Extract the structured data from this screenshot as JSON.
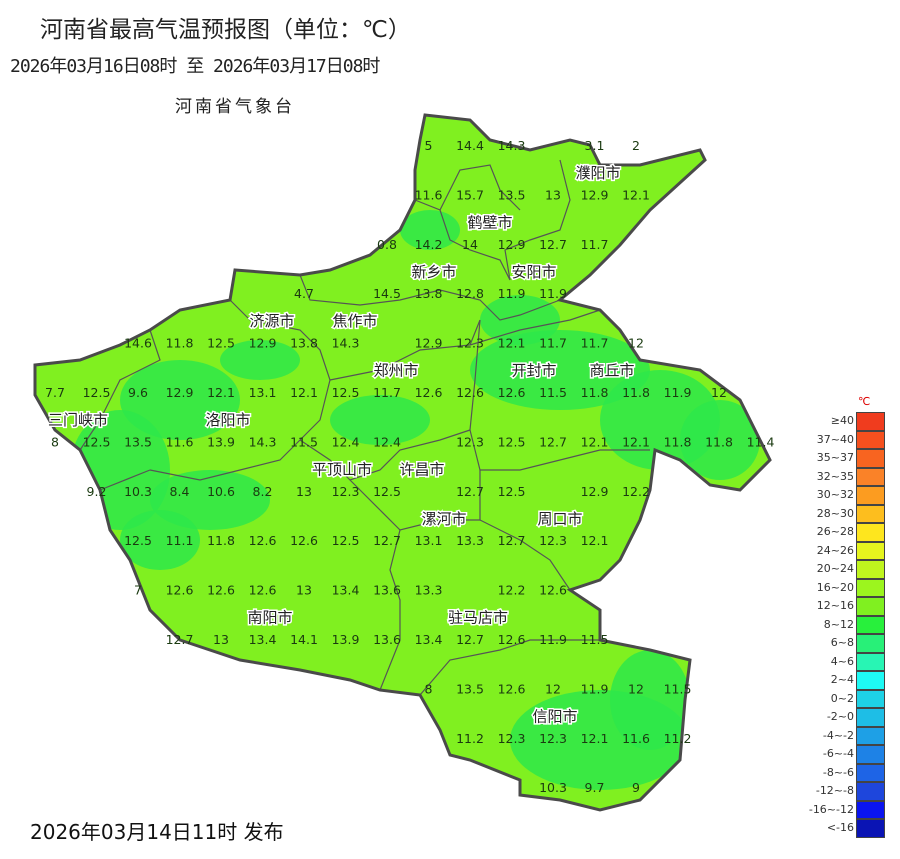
{
  "header": {
    "title": "河南省最高气温预报图（单位：℃）",
    "period": "2026年03月16日08时  至  2026年03月17日08时",
    "agency": "河南省气象台"
  },
  "footer": {
    "issued": "2026年03月14日11时 发布"
  },
  "colors": {
    "base": "#80f020",
    "cool_patch": "#2ee84a",
    "border": "#555555",
    "outer_border": "#4a4a4a"
  },
  "cities": [
    "濮阳市",
    "鹤壁市",
    "安阳市",
    "新乡市",
    "济源市",
    "焦作市",
    "郑州市",
    "开封市",
    "商丘市",
    "三门峡市",
    "洛阳市",
    "许昌市",
    "平顶山市",
    "漯河市",
    "周口市",
    "南阳市",
    "驻马店市",
    "信阳市"
  ],
  "station_grid": [
    {
      "row": 0,
      "values": [
        null,
        null,
        null,
        null,
        null,
        null,
        null,
        null,
        null,
        "5",
        "14.4",
        "14.3",
        null,
        "3.1",
        "2"
      ]
    },
    {
      "row": 1,
      "values": [
        null,
        null,
        null,
        null,
        null,
        null,
        null,
        null,
        null,
        "11.6",
        "15.7",
        "13.5",
        "13",
        "12.9",
        "12.1"
      ]
    },
    {
      "row": 2,
      "values": [
        null,
        null,
        null,
        null,
        null,
        null,
        null,
        null,
        "0.8",
        "14.2",
        "14",
        "12.9",
        "12.7",
        "11.7"
      ]
    },
    {
      "row": 3,
      "values": [
        null,
        null,
        null,
        null,
        null,
        null,
        "4.7",
        null,
        "14.5",
        "13.8",
        "12.8",
        "11.9",
        "11.9"
      ]
    },
    {
      "row": 4,
      "values": [
        null,
        null,
        "14.6",
        "11.8",
        "12.5",
        "12.9",
        "13.8",
        "14.3",
        null,
        "12.9",
        "12.3",
        "12.1",
        "11.7",
        "11.7",
        "12"
      ]
    },
    {
      "row": 5,
      "values": [
        "7.7",
        "12.5",
        "9.6",
        "12.9",
        "12.1",
        "13.1",
        "12.1",
        "12.5",
        "11.7",
        "12.6",
        "12.6",
        "12.6",
        "11.5",
        "11.8",
        "11.8",
        "11.9",
        "12"
      ]
    },
    {
      "row": 6,
      "values": [
        "8",
        "12.5",
        "13.5",
        "11.6",
        "13.9",
        "14.3",
        "11.5",
        "12.4",
        "12.4",
        null,
        "12.3",
        "12.5",
        "12.7",
        "12.1",
        "12.1",
        "11.8",
        "11.8",
        "11.4"
      ]
    },
    {
      "row": 7,
      "values": [
        null,
        "9.2",
        "10.3",
        "8.4",
        "10.6",
        "8.2",
        "13",
        "12.3",
        "12.5",
        null,
        "12.7",
        "12.5",
        null,
        "12.9",
        "12.2"
      ]
    },
    {
      "row": 8,
      "values": [
        null,
        null,
        "12.5",
        "11.1",
        "11.8",
        "12.6",
        "12.6",
        "12.5",
        "12.7",
        "13.1",
        "13.3",
        "12.7",
        "12.3",
        "12.1"
      ]
    },
    {
      "row": 9,
      "values": [
        null,
        null,
        "7",
        "12.6",
        "12.6",
        "12.6",
        "13",
        "13.4",
        "13.6",
        "13.3",
        null,
        "12.2",
        "12.6"
      ]
    },
    {
      "row": 10,
      "values": [
        null,
        null,
        null,
        "12.7",
        "13",
        "13.4",
        "14.1",
        "13.9",
        "13.6",
        "13.4",
        "12.7",
        "12.6",
        "11.9",
        "11.5"
      ]
    },
    {
      "row": 11,
      "values": [
        null,
        null,
        null,
        null,
        null,
        null,
        null,
        null,
        null,
        "8",
        "13.5",
        "12.6",
        "12",
        "11.9",
        "12",
        "11.5"
      ]
    },
    {
      "row": 12,
      "values": [
        null,
        null,
        null,
        null,
        null,
        null,
        null,
        null,
        null,
        null,
        "11.2",
        "12.3",
        "12.3",
        "12.1",
        "11.6",
        "11.2"
      ]
    },
    {
      "row": 13,
      "values": [
        null,
        null,
        null,
        null,
        null,
        null,
        null,
        null,
        null,
        null,
        null,
        null,
        "10.3",
        "9.7",
        "9"
      ]
    }
  ],
  "legend": {
    "unit": "℃",
    "items": [
      {
        "label": "≥40",
        "color": "#f03c1e"
      },
      {
        "label": "37~40",
        "color": "#f5501e"
      },
      {
        "label": "35~37",
        "color": "#f86420"
      },
      {
        "label": "32~35",
        "color": "#fa8228"
      },
      {
        "label": "30~32",
        "color": "#fc9c20"
      },
      {
        "label": "28~30",
        "color": "#fdbe1e"
      },
      {
        "label": "26~28",
        "color": "#fee61e"
      },
      {
        "label": "24~26",
        "color": "#e6f51e"
      },
      {
        "label": "20~24",
        "color": "#c0f51e"
      },
      {
        "label": "16~20",
        "color": "#9cf51e"
      },
      {
        "label": "12~16",
        "color": "#80f020"
      },
      {
        "label": "8~12",
        "color": "#28f03c"
      },
      {
        "label": "6~8",
        "color": "#28f078"
      },
      {
        "label": "4~6",
        "color": "#28f5b4"
      },
      {
        "label": "2~4",
        "color": "#1efaf5"
      },
      {
        "label": "0~2",
        "color": "#1ed2e6"
      },
      {
        "label": "-2~0",
        "color": "#1ebee6"
      },
      {
        "label": "-4~-2",
        "color": "#1ea0e6"
      },
      {
        "label": "-6~-4",
        "color": "#1e82e6"
      },
      {
        "label": "-8~-6",
        "color": "#1e64e6"
      },
      {
        "label": "-12~-8",
        "color": "#1e46dc"
      },
      {
        "label": "-16~-12",
        "color": "#0a14f0"
      },
      {
        "label": "<-16",
        "color": "#0a14b4"
      }
    ]
  }
}
